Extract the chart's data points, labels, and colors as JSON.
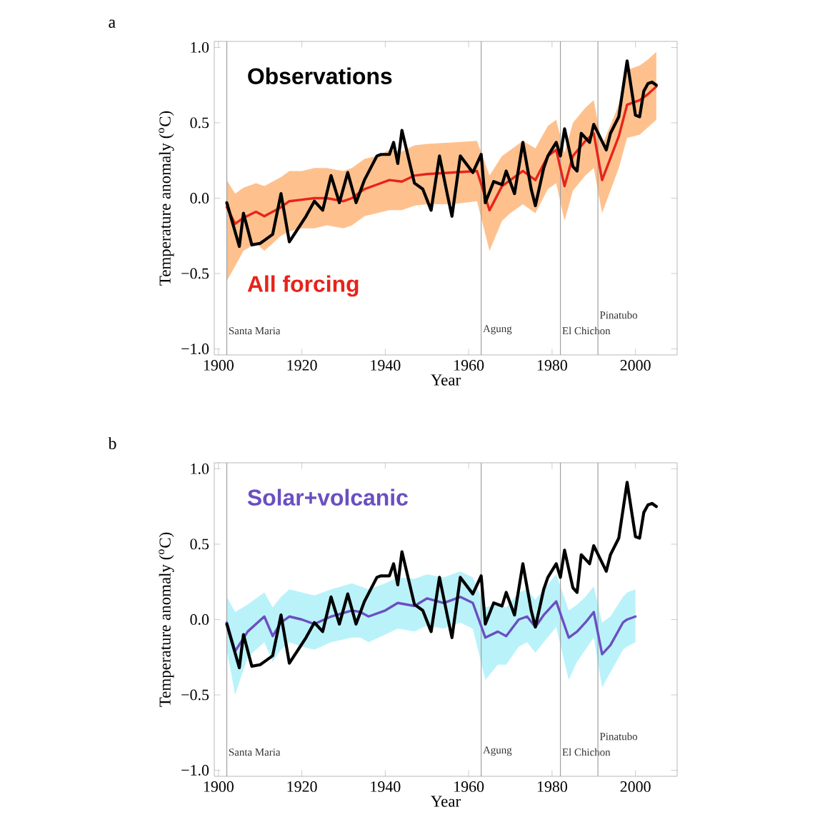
{
  "chart_data": [
    {
      "type": "line",
      "title": "a",
      "xlabel": "Year",
      "ylabel": "Temperature anomaly ($^{o}$C)",
      "xlim": [
        1899,
        2010
      ],
      "ylim": [
        -1.04,
        1.04
      ],
      "xticks": [
        1900,
        1920,
        1940,
        1960,
        1980,
        2000
      ],
      "yticks": [
        {
          "value": -1.0,
          "label": "−1.0"
        },
        {
          "value": -0.5,
          "label": "−0.5"
        },
        {
          "value": 0.0,
          "label": "0.0"
        },
        {
          "value": 0.5,
          "label": "0.5"
        },
        {
          "value": 1.0,
          "label": "1.0"
        }
      ],
      "series": [
        {
          "name": "All forcing",
          "color": "#e8231a",
          "x": [
            1902,
            1904,
            1906,
            1909,
            1911,
            1915,
            1917,
            1920,
            1923,
            1926,
            1930,
            1932,
            1935,
            1938,
            1941,
            1944,
            1947,
            1950,
            1956,
            1962,
            1965,
            1968,
            1970,
            1973,
            1976,
            1979,
            1981,
            1983,
            1985,
            1988,
            1990,
            1992,
            1996,
            1998,
            2001,
            2003,
            2005
          ],
          "values": [
            -0.06,
            -0.17,
            -0.13,
            -0.09,
            -0.12,
            -0.06,
            -0.02,
            -0.01,
            0.0,
            0.0,
            -0.02,
            0.0,
            0.06,
            0.09,
            0.12,
            0.11,
            0.15,
            0.16,
            0.17,
            0.18,
            -0.08,
            0.08,
            0.12,
            0.18,
            0.12,
            0.28,
            0.32,
            0.08,
            0.28,
            0.38,
            0.43,
            0.12,
            0.41,
            0.62,
            0.65,
            0.69,
            0.74
          ],
          "lower": [
            -0.55,
            -0.45,
            -0.35,
            -0.3,
            -0.35,
            -0.25,
            -0.22,
            -0.2,
            -0.2,
            -0.18,
            -0.2,
            -0.18,
            -0.12,
            -0.1,
            -0.08,
            -0.08,
            -0.05,
            -0.04,
            -0.04,
            -0.02,
            -0.35,
            -0.15,
            -0.1,
            -0.04,
            -0.1,
            0.06,
            0.1,
            -0.15,
            0.05,
            0.15,
            0.2,
            -0.1,
            0.2,
            0.4,
            0.42,
            0.47,
            0.52
          ],
          "upper": [
            0.12,
            0.03,
            0.07,
            0.1,
            0.08,
            0.14,
            0.18,
            0.18,
            0.2,
            0.2,
            0.18,
            0.2,
            0.26,
            0.28,
            0.32,
            0.31,
            0.35,
            0.36,
            0.37,
            0.38,
            0.15,
            0.28,
            0.32,
            0.38,
            0.33,
            0.48,
            0.52,
            0.3,
            0.5,
            0.6,
            0.65,
            0.35,
            0.62,
            0.85,
            0.88,
            0.92,
            0.97
          ]
        },
        {
          "name": "Observations",
          "color": "#000000",
          "x": [
            1902,
            1905,
            1906,
            1908,
            1910,
            1911,
            1913,
            1915,
            1917,
            1921,
            1923,
            1925,
            1927,
            1929,
            1931,
            1933,
            1935,
            1938,
            1939,
            1941,
            1942,
            1943,
            1944,
            1947,
            1949,
            1951,
            1953,
            1955,
            1956,
            1958,
            1961,
            1963,
            1964,
            1966,
            1968,
            1969,
            1971,
            1973,
            1975,
            1976,
            1978,
            1979,
            1981,
            1982,
            1983,
            1985,
            1986,
            1987,
            1989,
            1990,
            1993,
            1994,
            1996,
            1998,
            2000,
            2001,
            2002,
            2003,
            2004,
            2005
          ],
          "values": [
            -0.03,
            -0.32,
            -0.1,
            -0.31,
            -0.3,
            -0.28,
            -0.24,
            0.03,
            -0.29,
            -0.12,
            -0.02,
            -0.08,
            0.15,
            -0.03,
            0.17,
            -0.03,
            0.12,
            0.28,
            0.29,
            0.29,
            0.37,
            0.23,
            0.45,
            0.1,
            0.06,
            -0.08,
            0.28,
            0.01,
            -0.12,
            0.28,
            0.17,
            0.29,
            -0.03,
            0.11,
            0.09,
            0.18,
            0.03,
            0.37,
            0.06,
            -0.05,
            0.2,
            0.28,
            0.37,
            0.28,
            0.46,
            0.21,
            0.18,
            0.43,
            0.37,
            0.49,
            0.32,
            0.43,
            0.54,
            0.91,
            0.55,
            0.54,
            0.71,
            0.76,
            0.77,
            0.75
          ]
        }
      ],
      "ref_lines": [
        {
          "axis": "x",
          "value": 1902,
          "label": "Santa Maria",
          "color": "#a0a0a0"
        },
        {
          "axis": "x",
          "value": 1963,
          "label": "Agung",
          "color": "#a0a0a0"
        },
        {
          "axis": "x",
          "value": 1982,
          "label": "El Chichon",
          "color": "#a0a0a0"
        },
        {
          "axis": "x",
          "value": 1991,
          "label": "Pinatubo",
          "color": "#a0a0a0"
        }
      ]
    },
    {
      "type": "line",
      "title": "b",
      "xlabel": "Year",
      "ylabel": "Temperature anomaly ($^{o}$C)",
      "xlim": [
        1899,
        2010
      ],
      "ylim": [
        -1.04,
        1.04
      ],
      "xticks": [
        1900,
        1920,
        1940,
        1960,
        1980,
        2000
      ],
      "yticks": [
        {
          "value": -1.0,
          "label": "−1.0"
        },
        {
          "value": -0.5,
          "label": "−0.5"
        },
        {
          "value": 0.0,
          "label": "0.0"
        },
        {
          "value": 0.5,
          "label": "0.5"
        },
        {
          "value": 1.0,
          "label": "1.0"
        }
      ],
      "series": [
        {
          "name": "Solar+volcanic",
          "color": "#6a4fc0",
          "x": [
            1902,
            1904,
            1907,
            1911,
            1913,
            1915,
            1917,
            1920,
            1923,
            1927,
            1932,
            1934,
            1936,
            1940,
            1943,
            1947,
            1950,
            1954,
            1958,
            1961,
            1964,
            1967,
            1969,
            1972,
            1974,
            1976,
            1978,
            1981,
            1984,
            1986,
            1988,
            1990,
            1992,
            1994,
            1997,
            1998,
            2000
          ],
          "values": [
            -0.02,
            -0.21,
            -0.08,
            0.02,
            -0.11,
            -0.02,
            0.02,
            0.0,
            -0.03,
            0.02,
            0.06,
            0.05,
            0.02,
            0.06,
            0.11,
            0.09,
            0.14,
            0.11,
            0.15,
            0.11,
            -0.12,
            -0.08,
            -0.11,
            0.0,
            0.02,
            -0.05,
            0.03,
            0.12,
            -0.12,
            -0.08,
            -0.02,
            0.05,
            -0.23,
            -0.17,
            -0.02,
            0.0,
            0.02
          ],
          "lower": [
            -0.2,
            -0.5,
            -0.25,
            -0.15,
            -0.28,
            -0.2,
            -0.15,
            -0.18,
            -0.2,
            -0.15,
            -0.12,
            -0.12,
            -0.15,
            -0.1,
            -0.06,
            -0.08,
            -0.04,
            -0.06,
            -0.02,
            -0.06,
            -0.4,
            -0.3,
            -0.3,
            -0.18,
            -0.15,
            -0.22,
            -0.15,
            -0.05,
            -0.4,
            -0.28,
            -0.2,
            -0.12,
            -0.45,
            -0.35,
            -0.2,
            -0.18,
            -0.15
          ],
          "upper": [
            0.15,
            0.05,
            0.1,
            0.18,
            0.08,
            0.15,
            0.2,
            0.18,
            0.16,
            0.2,
            0.24,
            0.22,
            0.2,
            0.24,
            0.28,
            0.27,
            0.3,
            0.28,
            0.32,
            0.28,
            0.08,
            0.1,
            0.08,
            0.18,
            0.2,
            0.13,
            0.2,
            0.3,
            0.06,
            0.1,
            0.15,
            0.22,
            -0.02,
            0.02,
            0.15,
            0.18,
            0.2
          ]
        },
        {
          "color": "#000000",
          "x": [
            1902,
            1905,
            1906,
            1908,
            1910,
            1911,
            1913,
            1915,
            1917,
            1921,
            1923,
            1925,
            1927,
            1929,
            1931,
            1933,
            1935,
            1938,
            1939,
            1941,
            1942,
            1943,
            1944,
            1947,
            1949,
            1951,
            1953,
            1955,
            1956,
            1958,
            1961,
            1963,
            1964,
            1966,
            1968,
            1969,
            1971,
            1973,
            1975,
            1976,
            1978,
            1979,
            1981,
            1982,
            1983,
            1985,
            1986,
            1987,
            1989,
            1990,
            1993,
            1994,
            1996,
            1998,
            2000,
            2001,
            2002,
            2003,
            2004,
            2005
          ],
          "values": [
            -0.03,
            -0.32,
            -0.1,
            -0.31,
            -0.3,
            -0.28,
            -0.24,
            0.03,
            -0.29,
            -0.12,
            -0.02,
            -0.08,
            0.15,
            -0.03,
            0.17,
            -0.03,
            0.12,
            0.28,
            0.29,
            0.29,
            0.37,
            0.23,
            0.45,
            0.1,
            0.06,
            -0.08,
            0.28,
            0.01,
            -0.12,
            0.28,
            0.17,
            0.29,
            -0.03,
            0.11,
            0.09,
            0.18,
            0.03,
            0.37,
            0.06,
            -0.05,
            0.2,
            0.28,
            0.37,
            0.28,
            0.46,
            0.21,
            0.18,
            0.43,
            0.37,
            0.49,
            0.32,
            0.43,
            0.54,
            0.91,
            0.55,
            0.54,
            0.71,
            0.76,
            0.77,
            0.75
          ]
        }
      ],
      "ref_lines": [
        {
          "axis": "x",
          "value": 1902,
          "label": "Santa Maria",
          "color": "#a0a0a0"
        },
        {
          "axis": "x",
          "value": 1963,
          "label": "Agung",
          "color": "#a0a0a0"
        },
        {
          "axis": "x",
          "value": 1982,
          "label": "El Chichon",
          "color": "#a0a0a0"
        },
        {
          "axis": "x",
          "value": 1991,
          "label": "Pinatubo",
          "color": "#a0a0a0"
        }
      ]
    }
  ]
}
